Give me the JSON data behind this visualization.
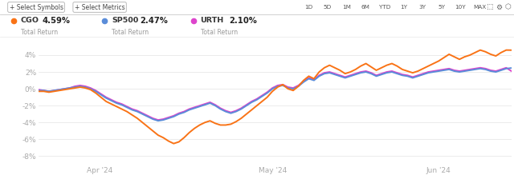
{
  "bg_color": "#ffffff",
  "plot_bg_color": "#ffffff",
  "grid_color": "#e8e8e8",
  "y_ticks": [
    -8,
    -6,
    -4,
    -2,
    0,
    2,
    4
  ],
  "y_tick_labels": [
    "-8%",
    "-6%",
    "-4%",
    "-2%",
    "0%",
    "2%",
    "4%"
  ],
  "x_tick_labels": [
    "Apr '24",
    "May '24",
    "Jun '24"
  ],
  "x_tick_positions": [
    0.13,
    0.495,
    0.845
  ],
  "ylim": [
    -9.0,
    5.8
  ],
  "xlim": [
    0.0,
    1.0
  ],
  "header_bg": "#f9f9f9",
  "header_border": "#d0d0d0",
  "legend_items": [
    {
      "label": "CGO",
      "value": "4.59%",
      "sublabel": "Total Return",
      "dot_color": "#f97316"
    },
    {
      "label": "SP500",
      "value": "2.47%",
      "sublabel": "Total Return",
      "dot_color": "#5b8dd9"
    },
    {
      "label": "URTH",
      "value": "2.10%",
      "sublabel": "Total Return",
      "dot_color": "#dd44cc"
    }
  ],
  "btn_left": [
    "+ Select Symbols",
    "+ Select Metrics"
  ],
  "btn_right": [
    "1D",
    "5D",
    "1M",
    "6M",
    "YTD",
    "1Y",
    "3Y",
    "5Y",
    "10Y",
    "MAX"
  ],
  "cgo_color": "#f97316",
  "sp500_color": "#5b8dd9",
  "urth_color": "#dd44cc",
  "linewidth": 1.4,
  "cgo": [
    -0.3,
    -0.3,
    -0.4,
    -0.3,
    -0.2,
    -0.1,
    0.0,
    0.1,
    0.2,
    0.1,
    -0.1,
    -0.5,
    -1.0,
    -1.5,
    -1.8,
    -2.1,
    -2.4,
    -2.7,
    -3.1,
    -3.5,
    -4.0,
    -4.5,
    -5.0,
    -5.5,
    -5.8,
    -6.2,
    -6.5,
    -6.3,
    -5.8,
    -5.2,
    -4.7,
    -4.3,
    -4.0,
    -3.8,
    -4.1,
    -4.3,
    -4.3,
    -4.2,
    -3.9,
    -3.5,
    -3.0,
    -2.5,
    -2.0,
    -1.5,
    -1.0,
    -0.3,
    0.2,
    0.5,
    0.0,
    -0.2,
    0.3,
    1.0,
    1.5,
    1.2,
    2.0,
    2.5,
    2.8,
    2.5,
    2.2,
    1.8,
    2.0,
    2.3,
    2.7,
    3.0,
    2.6,
    2.2,
    2.5,
    2.8,
    3.0,
    2.7,
    2.3,
    2.1,
    1.9,
    2.1,
    2.4,
    2.7,
    3.0,
    3.3,
    3.7,
    4.1,
    3.8,
    3.5,
    3.8,
    4.0,
    4.3,
    4.6,
    4.4,
    4.1,
    3.9,
    4.3,
    4.6,
    4.59
  ],
  "sp500": [
    -0.2,
    -0.2,
    -0.3,
    -0.2,
    -0.1,
    0.0,
    0.1,
    0.2,
    0.3,
    0.2,
    0.0,
    -0.3,
    -0.7,
    -1.1,
    -1.4,
    -1.7,
    -1.9,
    -2.2,
    -2.5,
    -2.7,
    -3.0,
    -3.3,
    -3.6,
    -3.8,
    -3.7,
    -3.5,
    -3.3,
    -3.0,
    -2.8,
    -2.5,
    -2.3,
    -2.1,
    -1.9,
    -1.7,
    -2.0,
    -2.4,
    -2.7,
    -2.9,
    -2.7,
    -2.4,
    -2.0,
    -1.6,
    -1.3,
    -0.9,
    -0.5,
    0.0,
    0.3,
    0.4,
    0.1,
    0.0,
    0.3,
    0.8,
    1.2,
    1.0,
    1.5,
    1.8,
    1.9,
    1.7,
    1.5,
    1.3,
    1.5,
    1.7,
    1.9,
    2.0,
    1.8,
    1.5,
    1.7,
    1.9,
    2.0,
    1.8,
    1.6,
    1.5,
    1.3,
    1.5,
    1.7,
    1.9,
    2.0,
    2.1,
    2.2,
    2.3,
    2.1,
    2.0,
    2.1,
    2.2,
    2.3,
    2.4,
    2.3,
    2.1,
    2.0,
    2.2,
    2.4,
    2.47
  ],
  "urth": [
    -0.1,
    -0.2,
    -0.3,
    -0.2,
    -0.1,
    0.0,
    0.1,
    0.3,
    0.4,
    0.3,
    0.1,
    -0.2,
    -0.6,
    -1.0,
    -1.3,
    -1.6,
    -1.8,
    -2.1,
    -2.4,
    -2.6,
    -2.9,
    -3.2,
    -3.5,
    -3.7,
    -3.6,
    -3.4,
    -3.2,
    -2.9,
    -2.7,
    -2.4,
    -2.2,
    -2.0,
    -1.8,
    -1.6,
    -1.9,
    -2.3,
    -2.6,
    -2.8,
    -2.6,
    -2.3,
    -1.9,
    -1.5,
    -1.2,
    -0.8,
    -0.4,
    0.1,
    0.4,
    0.5,
    0.2,
    0.1,
    0.4,
    0.9,
    1.3,
    1.1,
    1.6,
    1.9,
    2.0,
    1.8,
    1.6,
    1.4,
    1.6,
    1.8,
    2.0,
    2.1,
    1.9,
    1.6,
    1.8,
    2.0,
    2.1,
    1.9,
    1.7,
    1.6,
    1.4,
    1.6,
    1.8,
    2.0,
    2.1,
    2.2,
    2.3,
    2.4,
    2.2,
    2.1,
    2.2,
    2.3,
    2.4,
    2.5,
    2.4,
    2.2,
    2.1,
    2.3,
    2.5,
    2.1
  ]
}
